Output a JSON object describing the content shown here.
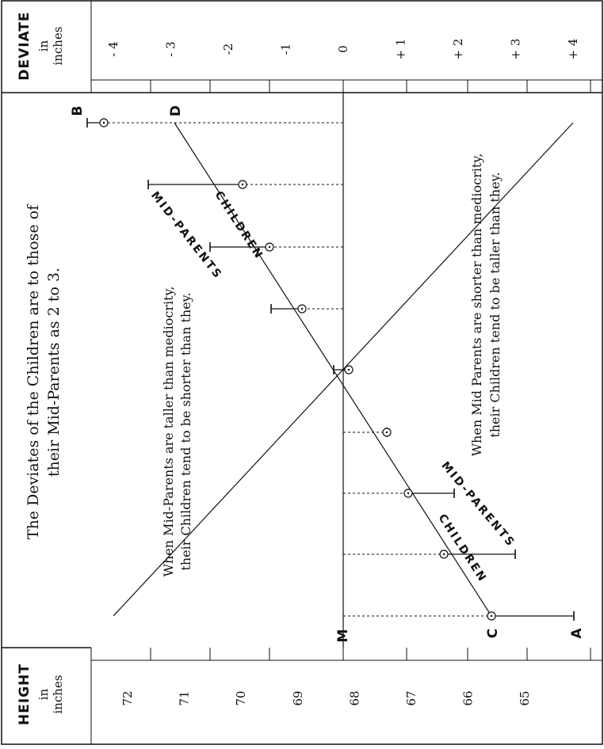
{
  "chart_data": {
    "type": "line",
    "title": "The Deviates of the Children are to those of their Mid-Parents as 2 to 3.",
    "title_lines": [
      "The Deviates of the Children are to those of",
      "their Mid-Parents as 2 to 3."
    ],
    "height_axis": {
      "label": "HEIGHT",
      "unit": "in inches",
      "unit_lines": [
        "in",
        "inches"
      ],
      "ticks": [
        "72",
        "71",
        "70",
        "69",
        "68",
        "67",
        "66",
        "65"
      ],
      "range": [
        64.5,
        72.5
      ]
    },
    "deviate_axis": {
      "label": "DEVIATE",
      "unit": "in inches",
      "unit_lines": [
        "in",
        "inches"
      ],
      "ticks": [
        "+ 4",
        "+ 3",
        "+ 2",
        "+ 1",
        "0",
        "-1",
        "-2",
        "- 3",
        "- 4"
      ],
      "range": [
        -4.5,
        4.5
      ]
    },
    "mediocrity_height": 68.2,
    "mediocrity_label": "M",
    "x": [
      4,
      3,
      2,
      1,
      0,
      -1,
      -2,
      -3,
      -4
    ],
    "series": [
      {
        "name": "MID-PARENTS",
        "label_start": "A",
        "label_end": "B",
        "marker": "bar",
        "values": [
          4,
          3,
          2,
          1,
          0,
          -1,
          -2,
          -3,
          -4
        ]
      },
      {
        "name": "CHILDREN",
        "label_start": "C",
        "label_end": "D",
        "marker": "circle",
        "values": [
          4,
          1.6,
          0.8,
          0.4,
          -0.1,
          -0.8,
          -1.1,
          -1.6,
          -2.3
        ]
      }
    ],
    "notes": [
      [
        "When Mid-Parents are taller than mediocrity,",
        "their Children tend to be shorter than they."
      ],
      [
        "When Mid Parents are shorter than mediocrity,",
        "their Children tend to be taller than they."
      ]
    ],
    "grid": false,
    "orientation": "rotated-90"
  }
}
